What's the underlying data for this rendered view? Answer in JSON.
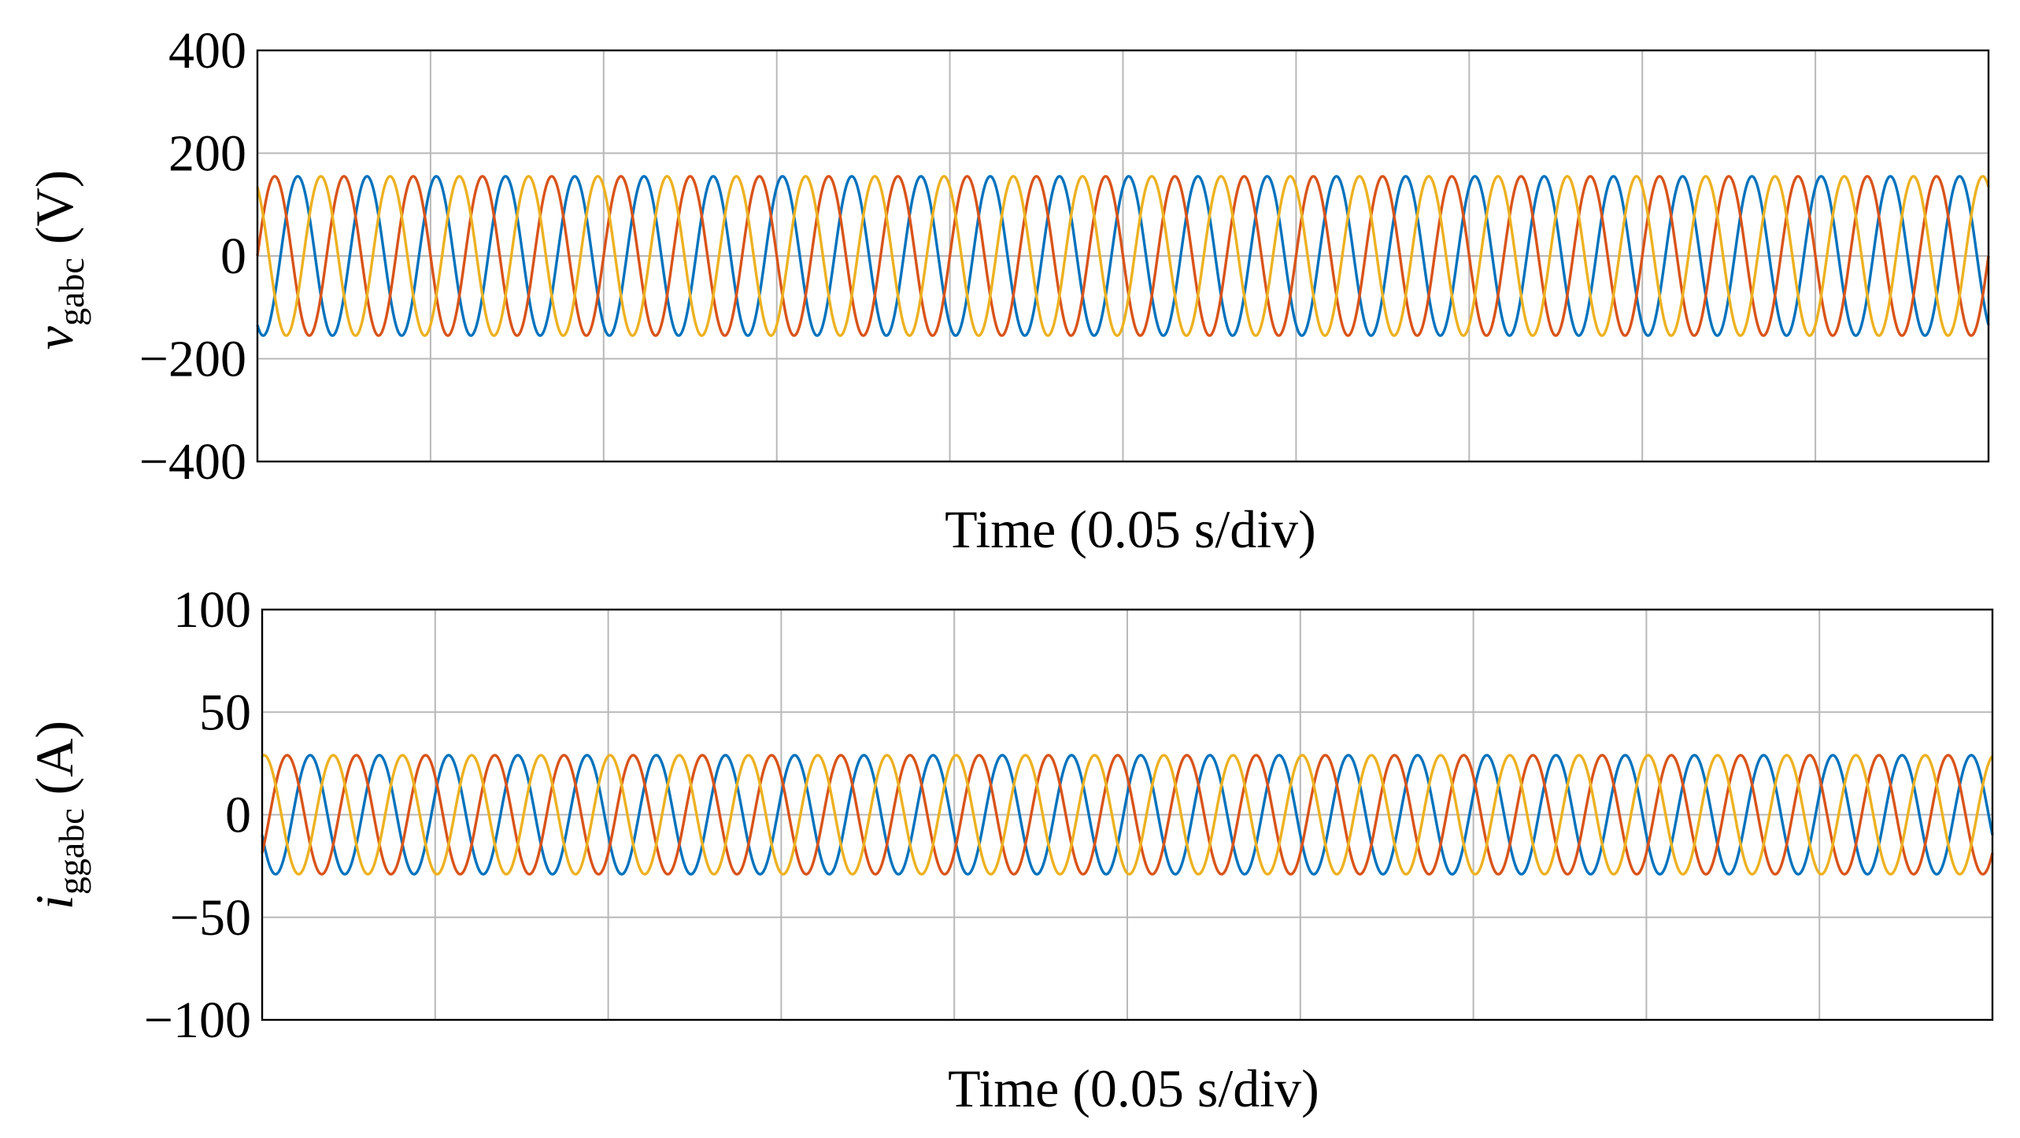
{
  "chart_data": [
    {
      "type": "line",
      "title": "",
      "xlabel": "Time (0.05 s/div)",
      "ylabel": {
        "symbol": "v",
        "subscript": "gabc",
        "unit": "(V)"
      },
      "ylim": [
        -400,
        400
      ],
      "yticks": [
        400,
        200,
        0,
        -200,
        -400
      ],
      "ytick_labels": [
        "400",
        "200",
        "0",
        "−200",
        "−400"
      ],
      "xlim": [
        0,
        0.5
      ],
      "x_divisions": 10,
      "grid": true,
      "legend": "none",
      "series": [
        {
          "amplitude": 155,
          "frequency_hz": 50,
          "phase_deg": 240,
          "color": "#0072BD"
        },
        {
          "amplitude": 155,
          "frequency_hz": 50,
          "phase_deg": 0,
          "color": "#D95319"
        },
        {
          "amplitude": 155,
          "frequency_hz": 50,
          "phase_deg": 120,
          "color": "#EDB120"
        }
      ]
    },
    {
      "type": "line",
      "title": "",
      "xlabel": "Time (0.05 s/div)",
      "ylabel": {
        "symbol": "i",
        "subscript": "ggabc",
        "unit": "(A)"
      },
      "ylim": [
        -100,
        100
      ],
      "yticks": [
        100,
        50,
        0,
        -50,
        -100
      ],
      "ytick_labels": [
        "100",
        "50",
        "0",
        "−50",
        "−100"
      ],
      "xlim": [
        0,
        0.5
      ],
      "x_divisions": 10,
      "grid": true,
      "legend": "none",
      "series": [
        {
          "amplitude": 29,
          "frequency_hz": 50,
          "phase_deg": 200,
          "color": "#0072BD"
        },
        {
          "amplitude": 29,
          "frequency_hz": 50,
          "phase_deg": 320,
          "color": "#D95319"
        },
        {
          "amplitude": 29,
          "frequency_hz": 50,
          "phase_deg": 80,
          "color": "#EDB120"
        }
      ]
    }
  ]
}
